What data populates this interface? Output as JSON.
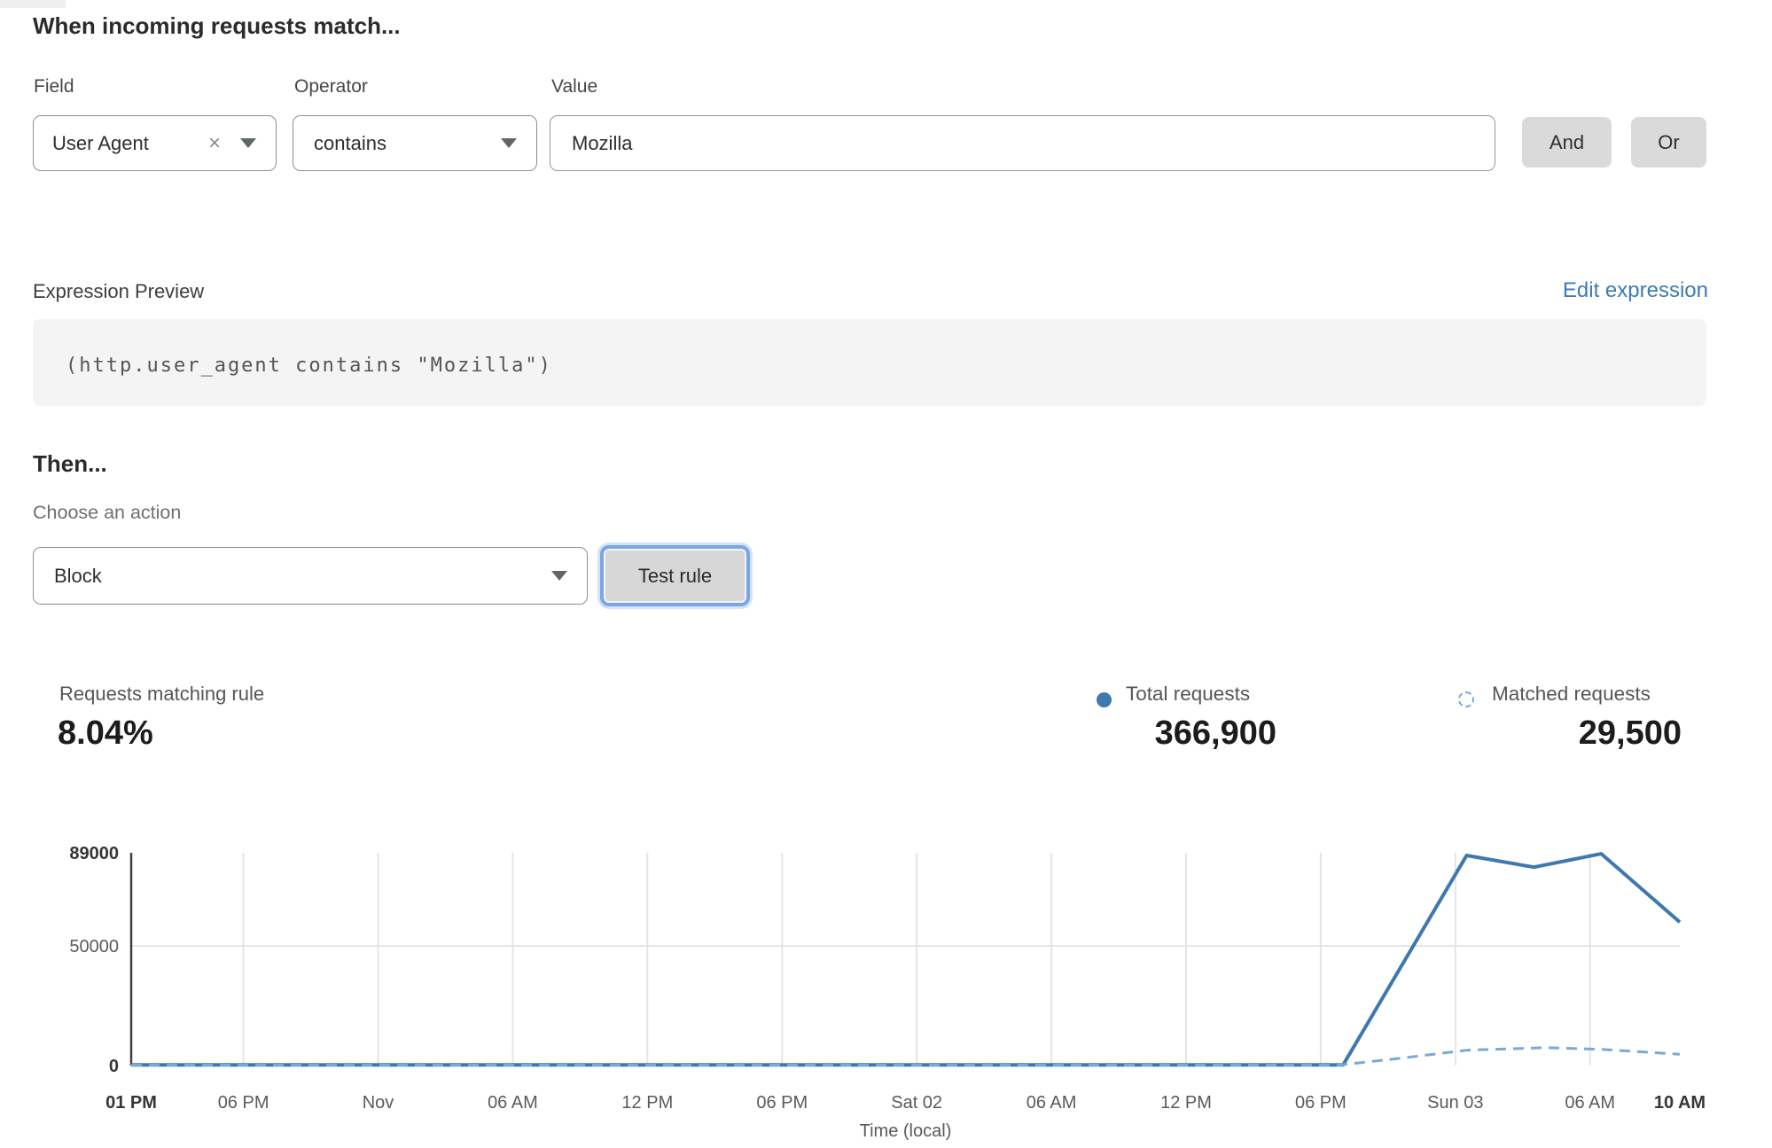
{
  "header": {
    "title": "When incoming requests match..."
  },
  "match_row": {
    "field": {
      "label": "Field",
      "value": "User Agent"
    },
    "operator": {
      "label": "Operator",
      "value": "contains"
    },
    "value": {
      "label": "Value",
      "text": "Mozilla"
    },
    "and_label": "And",
    "or_label": "Or"
  },
  "expression": {
    "label": "Expression Preview",
    "edit_link": "Edit expression",
    "code": "(http.user_agent contains \"Mozilla\")"
  },
  "then": {
    "title": "Then...",
    "action_label": "Choose an action",
    "action_value": "Block",
    "test_button": "Test rule"
  },
  "stats": {
    "match_label": "Requests matching rule",
    "match_value": "8.04%",
    "total": {
      "label": "Total requests",
      "value": "366,900"
    },
    "matched": {
      "label": "Matched requests",
      "value": "29,500"
    }
  },
  "colors": {
    "link_blue": "#3d7ab8",
    "line_solid": "#3d78ae",
    "line_dashed": "#7ba9d4",
    "focus_ring": "#7aa6e6",
    "grid": "#e5e5e5",
    "axis": "#404040"
  },
  "chart_data": {
    "type": "line",
    "xlabel": "Time (local)",
    "ylabel": "",
    "grid": true,
    "legend_position": "top-right",
    "ylim": [
      0,
      89000
    ],
    "y_ticks": [
      {
        "value": 0,
        "label": "0",
        "bold": true
      },
      {
        "value": 50000,
        "label": "50000",
        "bold": false
      },
      {
        "value": 89000,
        "label": "89000",
        "bold": true
      }
    ],
    "x_range_hours": [
      0,
      69
    ],
    "x_ticks": [
      {
        "hour": 0,
        "label": "01 PM",
        "bold": true
      },
      {
        "hour": 5,
        "label": "06 PM",
        "bold": false
      },
      {
        "hour": 11,
        "label": "Nov",
        "bold": false
      },
      {
        "hour": 17,
        "label": "06 AM",
        "bold": false
      },
      {
        "hour": 23,
        "label": "12 PM",
        "bold": false
      },
      {
        "hour": 29,
        "label": "06 PM",
        "bold": false
      },
      {
        "hour": 35,
        "label": "Sat 02",
        "bold": false
      },
      {
        "hour": 41,
        "label": "06 AM",
        "bold": false
      },
      {
        "hour": 47,
        "label": "12 PM",
        "bold": false
      },
      {
        "hour": 53,
        "label": "06 PM",
        "bold": false
      },
      {
        "hour": 59,
        "label": "Sun 03",
        "bold": false
      },
      {
        "hour": 65,
        "label": "06 AM",
        "bold": false
      },
      {
        "hour": 69,
        "label": "10 AM",
        "bold": true
      }
    ],
    "series": [
      {
        "name": "Total requests",
        "style": "solid",
        "color": "#3d78ae",
        "points": [
          [
            0,
            300
          ],
          [
            54,
            300
          ],
          [
            59.5,
            87900
          ],
          [
            62.5,
            83000
          ],
          [
            65.5,
            88600
          ],
          [
            69,
            60000
          ]
        ]
      },
      {
        "name": "Matched requests",
        "style": "dashed",
        "color": "#7ba9d4",
        "points": [
          [
            0,
            200
          ],
          [
            53.8,
            200
          ],
          [
            56.5,
            3000
          ],
          [
            59.5,
            6400
          ],
          [
            63,
            7500
          ],
          [
            65.5,
            6800
          ],
          [
            69,
            4700
          ]
        ]
      }
    ]
  }
}
